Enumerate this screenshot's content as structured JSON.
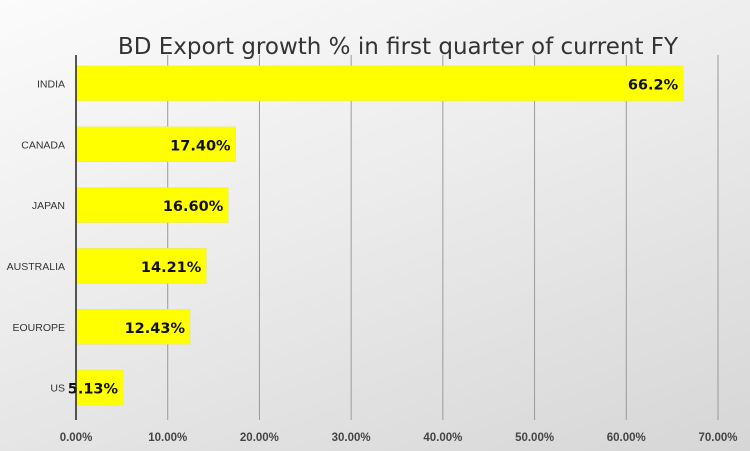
{
  "chart_data": {
    "type": "bar",
    "orientation": "horizontal",
    "title": "BD Export growth % in first quarter of current FY",
    "categories": [
      "INDIA",
      "CANADA",
      "JAPAN",
      "AUSTRALIA",
      "EOUROPE",
      "US"
    ],
    "values": [
      66.2,
      17.4,
      16.6,
      14.21,
      12.43,
      5.13
    ],
    "data_labels": [
      "66.2%",
      "17.40%",
      "16.60%",
      "14.21%",
      "12.43%",
      "5.13%"
    ],
    "xlim": [
      0,
      70
    ],
    "x_ticks": [
      0,
      10,
      20,
      30,
      40,
      50,
      60,
      70
    ],
    "x_tick_labels": [
      "0.00%",
      "10.00%",
      "20.00%",
      "30.00%",
      "40.00%",
      "50.00%",
      "60.00%",
      "70.00%"
    ],
    "xlabel": "",
    "ylabel": "",
    "grid": "vertical",
    "legend": "none",
    "bar_color": "#ffff00"
  }
}
